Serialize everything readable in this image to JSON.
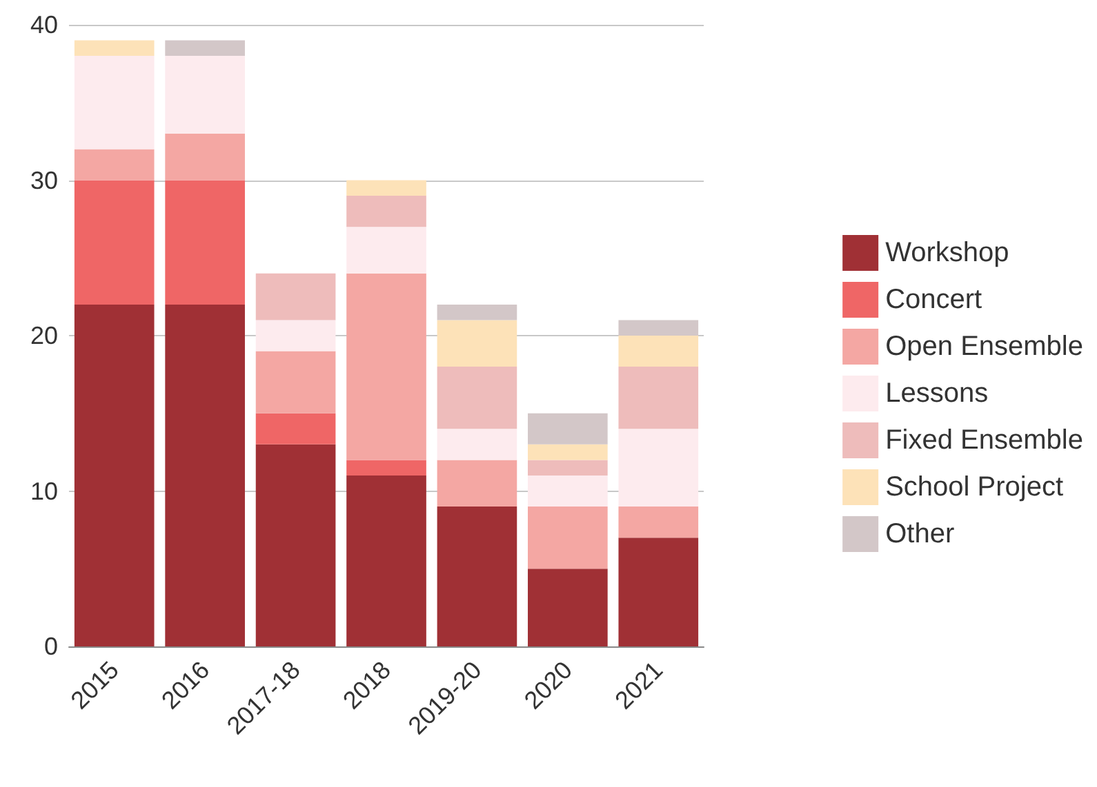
{
  "chart_data": {
    "type": "bar",
    "stacked": true,
    "categories": [
      "2015",
      "2016",
      "2017-18",
      "2018",
      "2019-20",
      "2020",
      "2021"
    ],
    "series": [
      {
        "name": "Workshop",
        "color": "#a03035",
        "values": [
          22,
          22,
          13,
          11,
          9,
          5,
          7
        ]
      },
      {
        "name": "Concert",
        "color": "#ef6666",
        "values": [
          8,
          8,
          2,
          1,
          0,
          0,
          0
        ]
      },
      {
        "name": "Open Ensemble",
        "color": "#f4a7a3",
        "values": [
          2,
          3,
          4,
          12,
          3,
          4,
          2
        ]
      },
      {
        "name": "Lessons",
        "color": "#fdebee",
        "values": [
          6,
          5,
          2,
          3,
          2,
          2,
          5
        ]
      },
      {
        "name": "Fixed Ensemble",
        "color": "#eebcbb",
        "values": [
          0,
          0,
          3,
          2,
          4,
          1,
          4
        ]
      },
      {
        "name": "School Project",
        "color": "#fde2b8",
        "values": [
          1,
          0,
          0,
          1,
          3,
          1,
          2
        ]
      },
      {
        "name": "Other",
        "color": "#d3c7c8",
        "values": [
          0,
          1,
          0,
          0,
          1,
          2,
          1
        ]
      }
    ],
    "ylim": [
      0,
      40
    ],
    "yticks": [
      0,
      10,
      20,
      30,
      40
    ],
    "grid": "y",
    "legend": "right"
  }
}
